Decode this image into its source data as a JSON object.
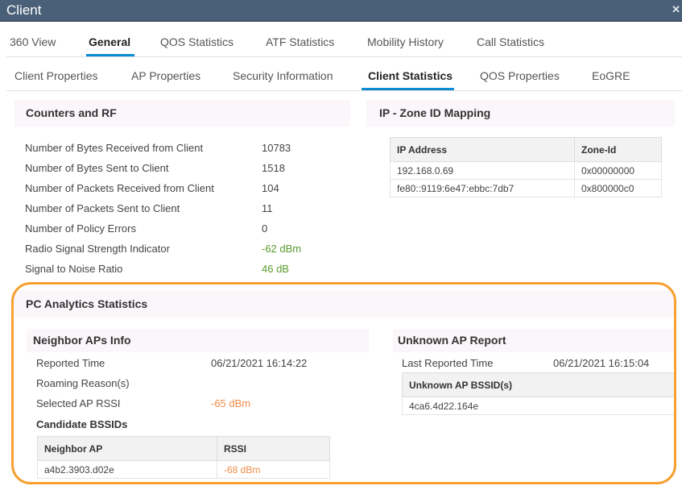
{
  "window": {
    "title": "Client",
    "close_icon": "close-icon"
  },
  "main_tabs": [
    {
      "label": "360 View"
    },
    {
      "label": "General",
      "active": true
    },
    {
      "label": "QOS Statistics"
    },
    {
      "label": "ATF Statistics"
    },
    {
      "label": "Mobility History"
    },
    {
      "label": "Call Statistics"
    }
  ],
  "sub_tabs": [
    {
      "label": "Client Properties"
    },
    {
      "label": "AP Properties"
    },
    {
      "label": "Security Information"
    },
    {
      "label": "Client Statistics",
      "active": true
    },
    {
      "label": "QOS Properties"
    },
    {
      "label": "EoGRE"
    }
  ],
  "counters": {
    "title": "Counters and RF",
    "rows": [
      {
        "label": "Number of Bytes Received from Client",
        "value": "10783"
      },
      {
        "label": "Number of Bytes Sent to Client",
        "value": "1518"
      },
      {
        "label": "Number of Packets Received from Client",
        "value": "104"
      },
      {
        "label": "Number of Packets Sent to Client",
        "value": "11"
      },
      {
        "label": "Number of Policy Errors",
        "value": "0"
      },
      {
        "label": "Radio Signal Strength Indicator",
        "value": "-62 dBm"
      },
      {
        "label": "Signal to Noise Ratio",
        "value": "46 dB"
      }
    ]
  },
  "ip_zone": {
    "title": "IP - Zone ID Mapping",
    "columns": [
      "IP Address",
      "Zone-Id"
    ],
    "rows": [
      [
        "192.168.0.69",
        "0x00000000"
      ],
      [
        "fe80::9119:6e47:ebbc:7db7",
        "0x800000c0"
      ]
    ]
  },
  "pc_analytics": {
    "title": "PC Analytics Statistics",
    "neighbor": {
      "title": "Neighbor APs Info",
      "reported_time_label": "Reported Time",
      "reported_time": "06/21/2021 16:14:22",
      "roaming_label": "Roaming Reason(s)",
      "selected_rssi_label": "Selected AP RSSI",
      "selected_rssi": "-65 dBm",
      "candidate_label": "Candidate BSSIDs",
      "columns": [
        "Neighbor AP",
        "RSSI"
      ],
      "rows": [
        [
          "a4b2.3903.d02e",
          "-68 dBm"
        ]
      ]
    },
    "unknown": {
      "title": "Unknown AP Report",
      "last_reported_label": "Last Reported Time",
      "last_reported": "06/21/2021 16:15:04",
      "columns": [
        "Unknown AP BSSID(s)"
      ],
      "rows": [
        [
          "4ca6.4d22.164e"
        ]
      ]
    }
  },
  "colors": {
    "titlebar": "#4a6078",
    "accent": "#0a8ad0",
    "highlight": "#f7a030",
    "good": "#5a9a2e",
    "warn": "#f08c4a"
  }
}
